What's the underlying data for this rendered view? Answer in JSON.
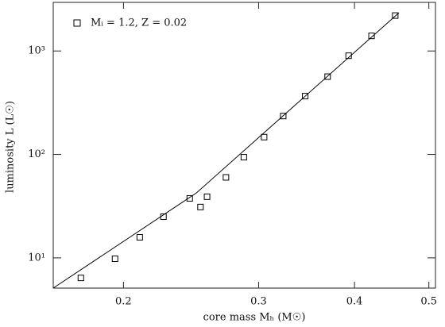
{
  "chart_data": {
    "type": "scatter",
    "xlabel": "core mass  Mₕ  (M☉)",
    "ylabel": "luminosity  L  (L☉)",
    "xlog": true,
    "ylog": true,
    "xlim": [
      0.162,
      0.51
    ],
    "ylim": [
      5.1,
      2950
    ],
    "xticks": [
      0.2,
      0.3,
      0.4,
      0.5
    ],
    "yticks": [
      {
        "value": 10,
        "label": "10¹"
      },
      {
        "value": 100,
        "label": "10²"
      },
      {
        "value": 1000,
        "label": "10³"
      }
    ],
    "legend": "upper left",
    "series": [
      {
        "name": "Mᵢ = 1.2, Z = 0.02",
        "type": "scatter",
        "color": "#000000",
        "x": [
          0.176,
          0.195,
          0.21,
          0.2255,
          0.244,
          0.252,
          0.257,
          0.272,
          0.287,
          0.305,
          0.323,
          0.345,
          0.369,
          0.393,
          0.421,
          0.452
        ],
        "values": [
          6.4,
          9.8,
          15.8,
          25,
          37.6,
          31,
          39,
          60,
          94,
          147,
          235,
          366,
          565,
          900,
          1400,
          2200
        ]
      },
      {
        "type": "line",
        "color": "#000000",
        "x": [
          0.162,
          0.249,
          0.457
        ],
        "values": [
          5.1,
          42.5,
          2340
        ]
      }
    ]
  }
}
